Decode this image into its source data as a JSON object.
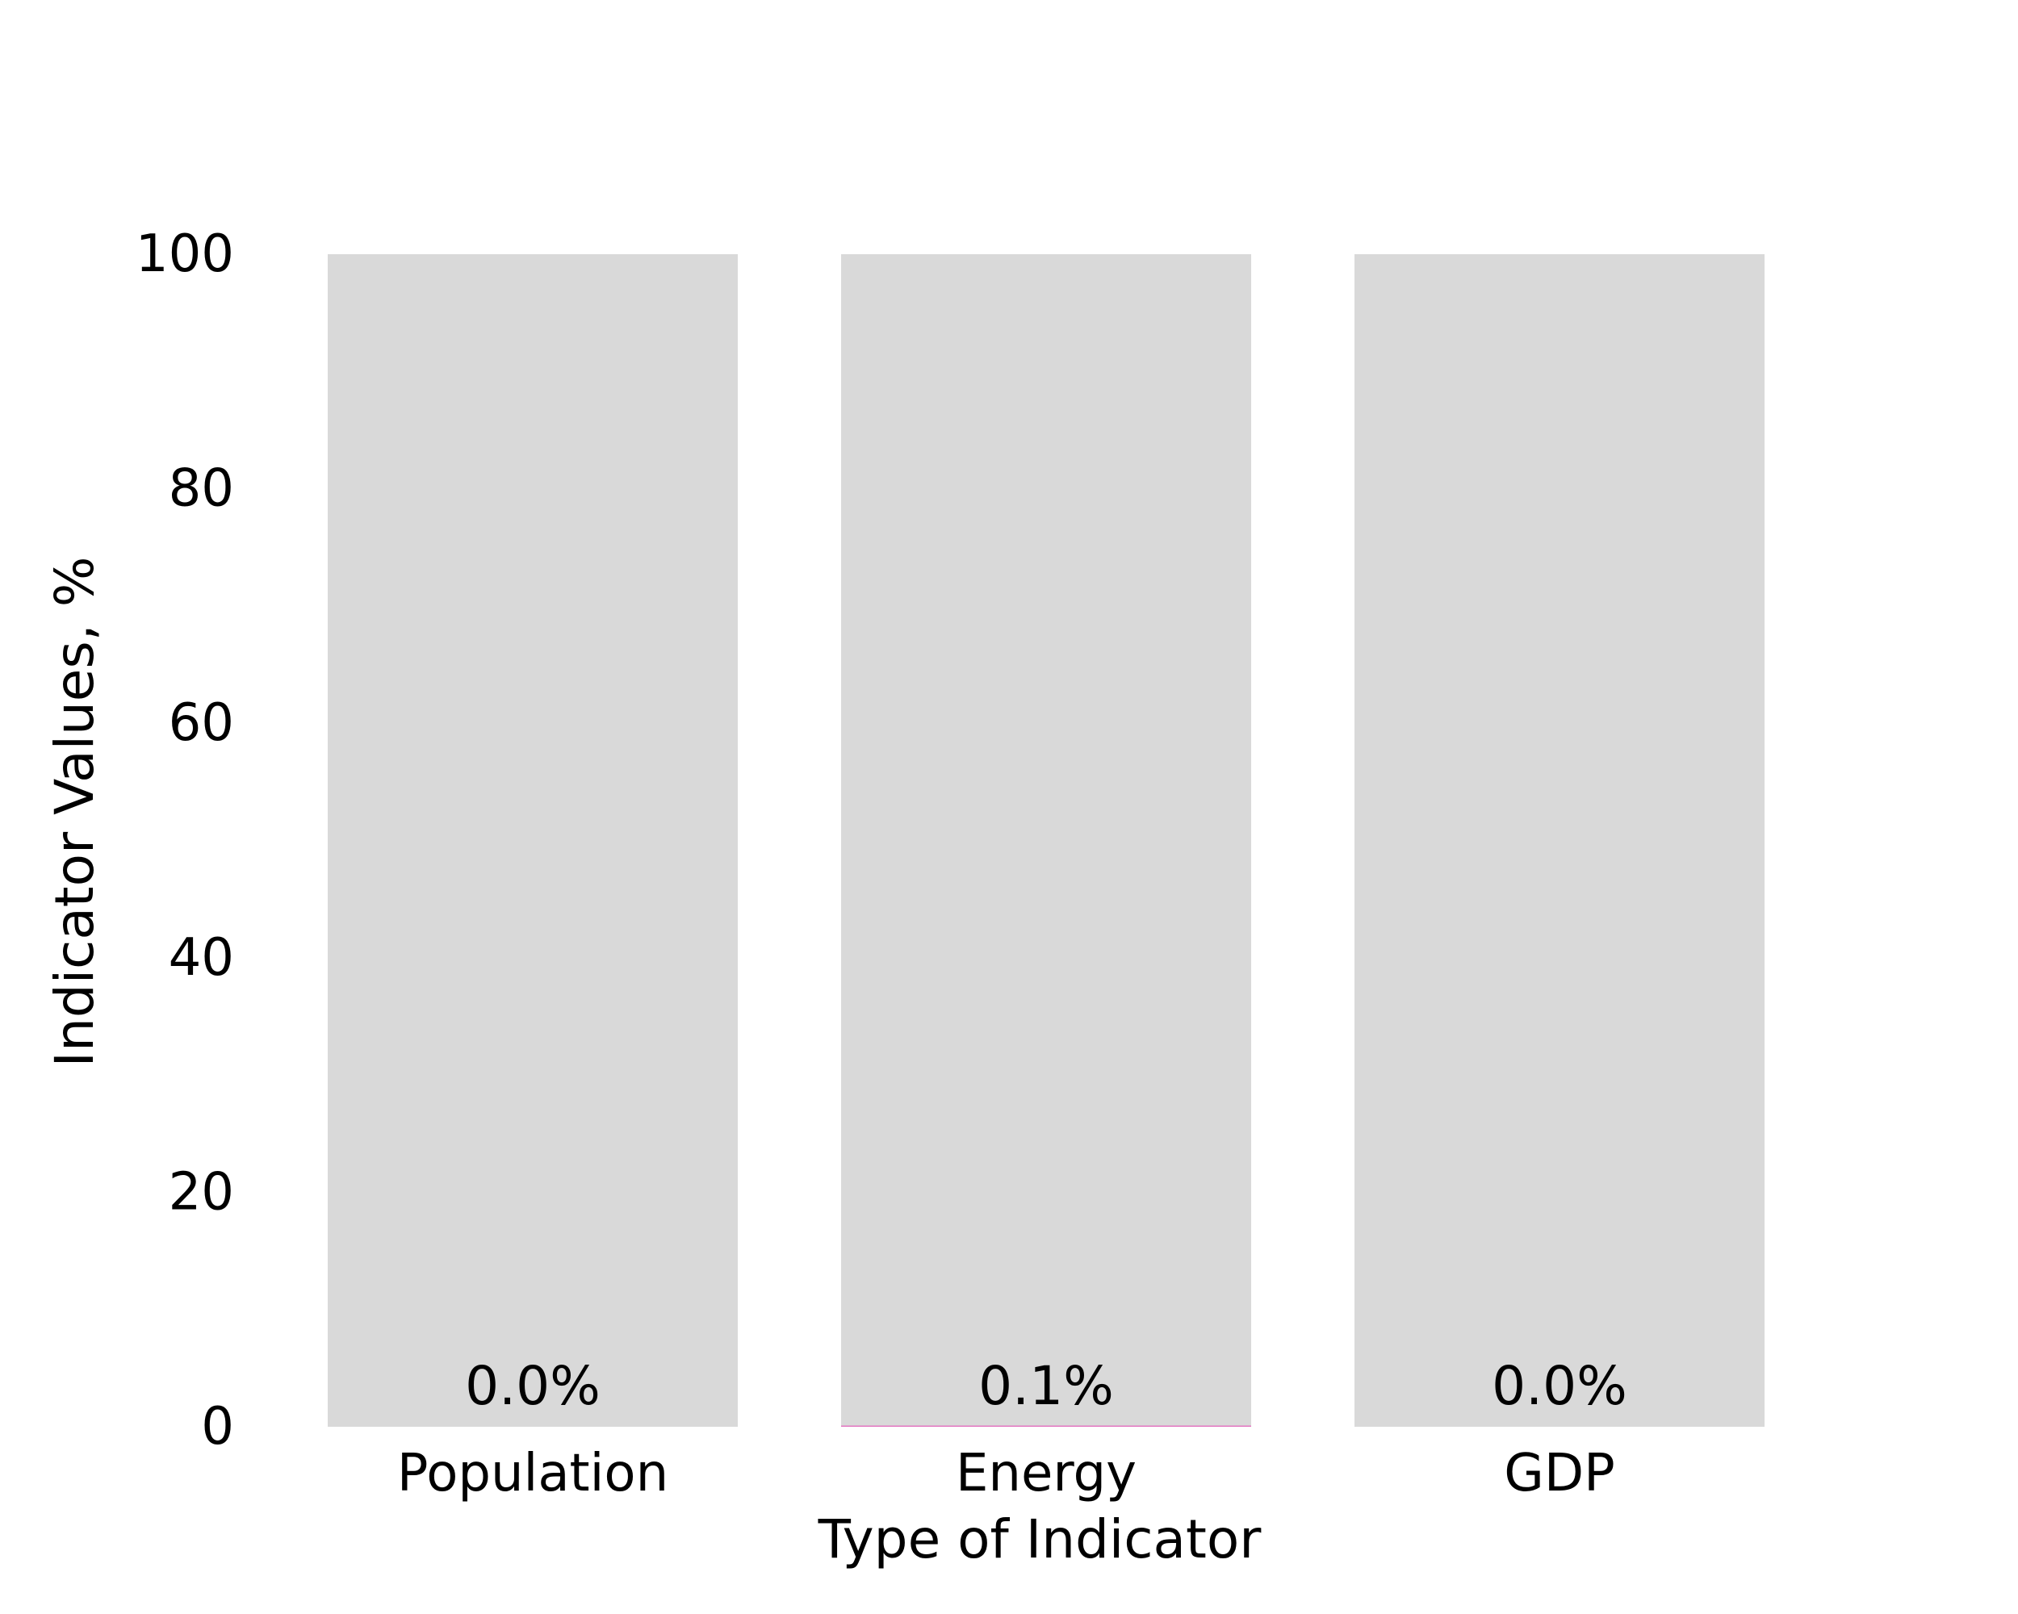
{
  "chart_data": {
    "type": "bar",
    "categories": [
      "Population",
      "Energy",
      "GDP"
    ],
    "values": [
      0.0,
      0.1,
      0.0
    ],
    "value_labels": [
      "0.0%",
      "0.1%",
      "0.0%"
    ],
    "background_values": [
      100,
      100,
      100
    ],
    "xlabel": "Type of Indicator",
    "ylabel": "Indicator Values, %",
    "ylim": [
      0,
      100
    ],
    "yticks": [
      "0",
      "20",
      "40",
      "60",
      "80",
      "100"
    ],
    "grid": false,
    "colors": {
      "background_bar": "#d9d9d9",
      "value_bar": "#e377c2"
    }
  }
}
